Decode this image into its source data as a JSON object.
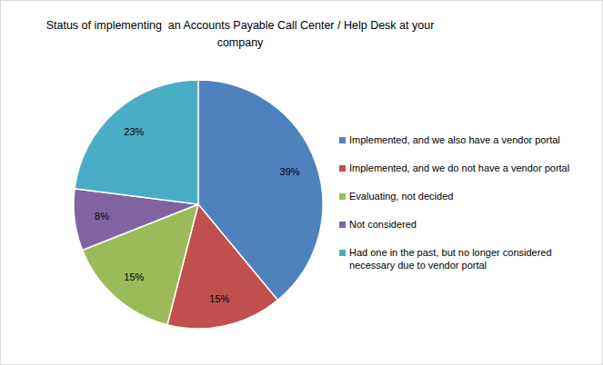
{
  "chart_data": {
    "type": "pie",
    "title": "Status of implementing  an Accounts Payable Call Center / Help Desk at your company",
    "categories": [
      "Implemented, and we also have a vendor portal",
      "Implemented, and we do not have a vendor portal",
      "Evaluating, not decided",
      "Not considered",
      "Had one in the past, but no longer considered necessary due to vendor portal"
    ],
    "values": [
      39,
      15,
      15,
      8,
      23
    ],
    "value_labels": [
      "39%",
      "15%",
      "15%",
      "8%",
      "23%"
    ],
    "colors": [
      "#4f81bd",
      "#c0504d",
      "#9bbb59",
      "#8064a2",
      "#4bacc6"
    ],
    "data_labels": true,
    "legend": "right"
  }
}
